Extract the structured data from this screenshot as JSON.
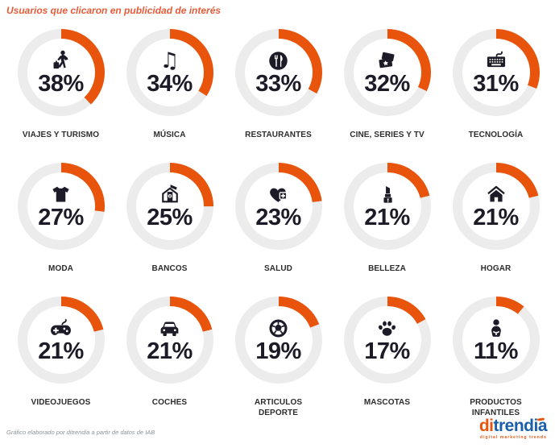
{
  "title": "Usuarios que clicaron en publicidad de interés",
  "colors": {
    "accent_orange": "#E8540C",
    "track_gray": "#ECECEC",
    "text_dark": "#1C1B27",
    "title_color": "#E45C3A",
    "logo_blue": "#1B5FAA",
    "footer_gray": "#8D9499"
  },
  "chart_data": {
    "type": "donut-grid",
    "title": "Usuarios que clicaron en publicidad de interés",
    "unit": "%",
    "layout": {
      "columns": 5,
      "rows": 3,
      "arc_start": "top",
      "direction": "clockwise",
      "value_range": [
        0,
        100
      ]
    },
    "items": [
      {
        "label": "VIAJES Y TURISMO",
        "value": 38,
        "icon": "traveler-icon"
      },
      {
        "label": "MÚSICA",
        "value": 34,
        "icon": "music-note-icon"
      },
      {
        "label": "RESTAURANTES",
        "value": 33,
        "icon": "restaurant-icon"
      },
      {
        "label": "CINE, SERIES Y TV",
        "value": 32,
        "icon": "cinema-tickets-icon"
      },
      {
        "label": "TECNOLOGÍA",
        "value": 31,
        "icon": "keyboard-icon"
      },
      {
        "label": "MODA",
        "value": 27,
        "icon": "tshirt-icon"
      },
      {
        "label": "BANCOS",
        "value": 25,
        "icon": "bank-icon"
      },
      {
        "label": "SALUD",
        "value": 23,
        "icon": "health-heart-icon"
      },
      {
        "label": "BELLEZA",
        "value": 21,
        "icon": "lipstick-icon"
      },
      {
        "label": "HOGAR",
        "value": 21,
        "icon": "home-icon"
      },
      {
        "label": "VIDEOJUEGOS",
        "value": 21,
        "icon": "gamepad-icon"
      },
      {
        "label": "COCHES",
        "value": 21,
        "icon": "car-icon"
      },
      {
        "label": "ARTICULOS\nDEPORTE",
        "value": 19,
        "icon": "soccer-ball-icon"
      },
      {
        "label": "MASCOTAS",
        "value": 17,
        "icon": "paw-icon"
      },
      {
        "label": "PRODUCTOS\nINFANTILES",
        "value": 11,
        "icon": "baby-icon"
      }
    ]
  },
  "footer": {
    "source_note": "Gráfico elaborado por ditrendia a partir de datos de IAB",
    "logo": {
      "prefix": "di",
      "rest": "trendia",
      "tagline": "digital marketing trends"
    }
  }
}
